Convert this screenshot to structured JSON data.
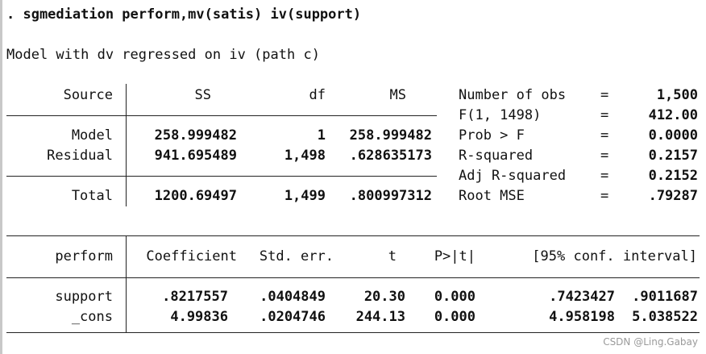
{
  "command": ". sgmediation perform,mv(satis) iv(support)",
  "model_title": "Model with dv regressed on iv (path c)",
  "anova": {
    "headers": [
      "Source",
      "SS",
      "df",
      "MS"
    ],
    "rows": [
      {
        "source": "Model",
        "ss": "258.999482",
        "df": "1",
        "ms": "258.999482"
      },
      {
        "source": "Residual",
        "ss": "941.695489",
        "df": "1,498",
        "ms": ".628635173"
      }
    ],
    "total": {
      "source": "Total",
      "ss": "1200.69497",
      "df": "1,499",
      "ms": ".800997312"
    }
  },
  "stats": [
    {
      "label": "Number of obs",
      "eq": "=",
      "value": "1,500"
    },
    {
      "label": "F(1, 1498)",
      "eq": "=",
      "value": "412.00"
    },
    {
      "label": "Prob > F",
      "eq": "=",
      "value": "0.0000"
    },
    {
      "label": "R-squared",
      "eq": "=",
      "value": "0.2157"
    },
    {
      "label": "Adj R-squared",
      "eq": "=",
      "value": "0.2152"
    },
    {
      "label": "Root MSE",
      "eq": "=",
      "value": ".79287"
    }
  ],
  "coef": {
    "headers": [
      "perform",
      "Coefficient",
      "Std. err.",
      "t",
      "P>|t|",
      "[95% conf. interval]"
    ],
    "rows": [
      {
        "name": "support",
        "coef": ".8217557",
        "se": ".0404849",
        "t": "20.30",
        "p": "0.000",
        "lo": ".7423427",
        "hi": ".9011687"
      },
      {
        "name": "_cons",
        "coef": "4.99836",
        "se": ".0204746",
        "t": "244.13",
        "p": "0.000",
        "lo": "4.958198",
        "hi": "5.038522"
      }
    ]
  },
  "watermark": "CSDN @Ling.Gabay"
}
